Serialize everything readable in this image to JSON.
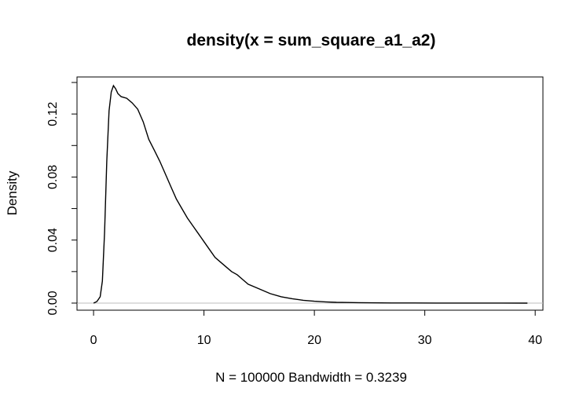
{
  "chart_data": {
    "type": "line",
    "title": "density(x = sum_square_a1_a2)",
    "xlabel": "N = 100000   Bandwidth = 0.3239",
    "ylabel": "Density",
    "xlim": [
      -1.5,
      40.7
    ],
    "ylim": [
      -0.0045,
      0.1435
    ],
    "xticks": [
      0,
      10,
      20,
      30,
      40
    ],
    "xtick_labels": [
      "0",
      "10",
      "20",
      "30",
      "40"
    ],
    "yticks": [
      0.0,
      0.02,
      0.04,
      0.06,
      0.08,
      0.1,
      0.12,
      0.14
    ],
    "ytick_labels": [
      "0.00",
      "",
      "0.04",
      "",
      "0.08",
      "",
      "0.12",
      ""
    ],
    "grid": false,
    "baseline": 0,
    "series": [
      {
        "x": [
          0.0,
          0.3,
          0.6,
          0.8,
          1.0,
          1.2,
          1.4,
          1.6,
          1.8,
          2.0,
          2.2,
          2.5,
          3.0,
          3.5,
          4.0,
          4.5,
          5.0,
          5.5,
          6.0,
          6.5,
          7.0,
          7.5,
          8.0,
          8.5,
          9.0,
          9.5,
          10.0,
          10.5,
          11.0,
          11.5,
          12.0,
          12.5,
          13.0,
          13.5,
          14.0,
          15.0,
          16.0,
          17.0,
          18.0,
          19.0,
          20.0,
          21.0,
          22.0,
          23.0,
          24.0,
          25.0,
          27.0,
          29.0,
          31.0,
          33.0,
          35.0,
          37.0,
          39.3
        ],
        "y": [
          0.0,
          0.001,
          0.004,
          0.014,
          0.045,
          0.09,
          0.122,
          0.134,
          0.138,
          0.136,
          0.133,
          0.131,
          0.13,
          0.127,
          0.123,
          0.115,
          0.104,
          0.097,
          0.09,
          0.082,
          0.074,
          0.066,
          0.06,
          0.054,
          0.049,
          0.044,
          0.039,
          0.034,
          0.029,
          0.026,
          0.023,
          0.02,
          0.018,
          0.015,
          0.012,
          0.009,
          0.006,
          0.004,
          0.0028,
          0.0018,
          0.0012,
          0.0008,
          0.0005,
          0.0004,
          0.0003,
          0.0002,
          0.0001,
          8e-05,
          5e-05,
          3e-05,
          2e-05,
          1e-05,
          0.0
        ]
      }
    ]
  }
}
